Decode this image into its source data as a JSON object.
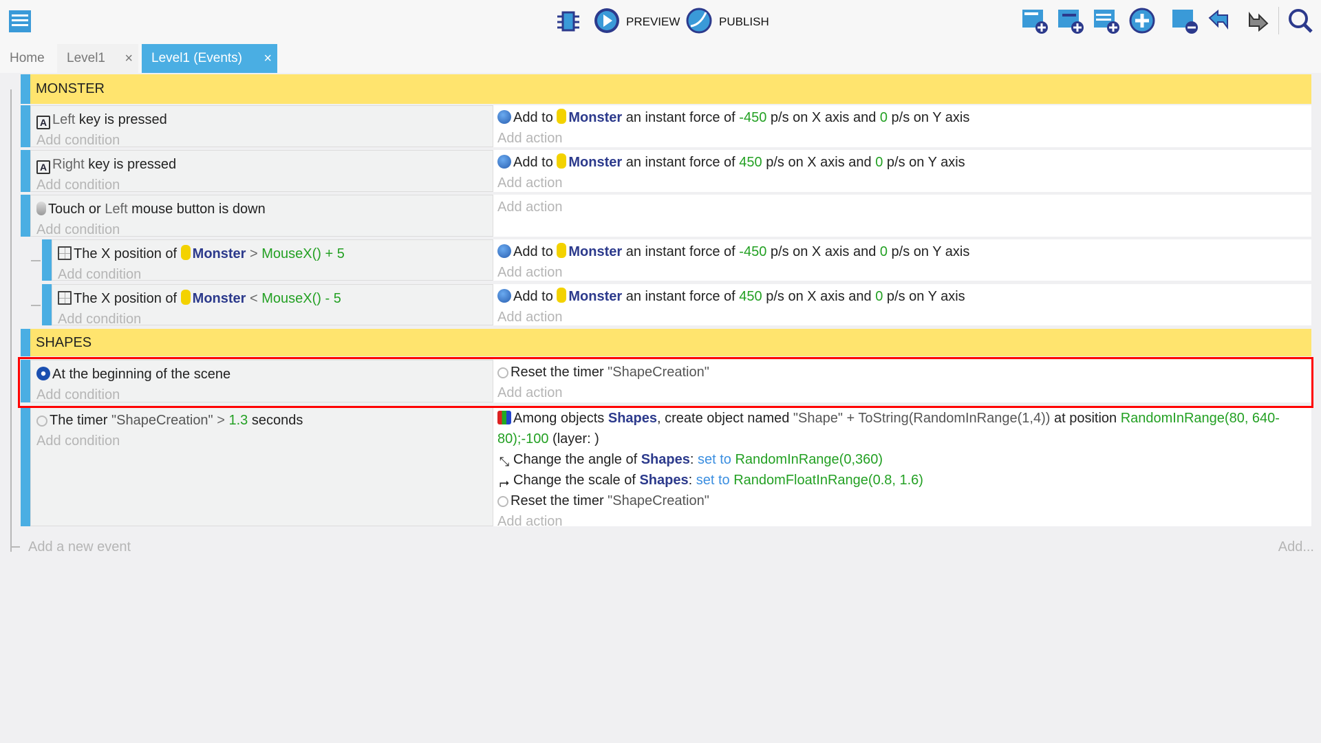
{
  "toolbar": {
    "preview_label": "PREVIEW",
    "publish_label": "PUBLISH"
  },
  "tabs": [
    {
      "label": "Home"
    },
    {
      "label": "Level1"
    },
    {
      "label": "Level1 (Events)",
      "active": true
    }
  ],
  "tab_close": "×",
  "colors": {
    "accent": "#4aaee3",
    "group": "#ffe46e",
    "object": "#2c3a8c",
    "number": "#23a023",
    "selection": "#ff0000"
  },
  "add_condition": "Add condition",
  "add_action": "Add action",
  "groups": [
    {
      "label": "MONSTER"
    },
    {
      "label": "SHAPES"
    }
  ],
  "events": [
    {
      "conditions": [
        [
          {
            "i": "key",
            "t": "A"
          },
          {
            "t": "Left",
            "c": "op"
          },
          {
            "t": " key is pressed"
          }
        ]
      ],
      "actions": [
        [
          {
            "i": "force"
          },
          {
            "t": "Add to "
          },
          {
            "i": "mon"
          },
          {
            "t": "Monster",
            "c": "obj"
          },
          {
            "t": " an instant "
          },
          {
            "t": "force of "
          },
          {
            "t": "-450",
            "c": "num"
          },
          {
            "t": " p/s on X axis and "
          },
          {
            "t": "0",
            "c": "num"
          },
          {
            "t": " p/s on Y axis"
          }
        ]
      ]
    },
    {
      "conditions": [
        [
          {
            "i": "key",
            "t": "A"
          },
          {
            "t": "Right",
            "c": "op"
          },
          {
            "t": " key is pressed"
          }
        ]
      ],
      "actions": [
        [
          {
            "i": "force"
          },
          {
            "t": "Add to "
          },
          {
            "i": "mon"
          },
          {
            "t": "Monster",
            "c": "obj"
          },
          {
            "t": " an instant "
          },
          {
            "t": "force of "
          },
          {
            "t": "450",
            "c": "num"
          },
          {
            "t": " p/s on X axis and "
          },
          {
            "t": "0",
            "c": "num"
          },
          {
            "t": " p/s on Y axis"
          }
        ]
      ]
    },
    {
      "conditions": [
        [
          {
            "i": "mouse"
          },
          {
            "t": "Touch or "
          },
          {
            "t": "Left",
            "c": "op"
          },
          {
            "t": " mouse button is down"
          }
        ]
      ],
      "actions": []
    },
    {
      "sub": true,
      "conditions": [
        [
          {
            "i": "pos"
          },
          {
            "t": "The X position of "
          },
          {
            "i": "mon"
          },
          {
            "t": "Monster",
            "c": "obj"
          },
          {
            "t": " > ",
            "c": "op"
          },
          {
            "t": "MouseX() + 5",
            "c": "num"
          }
        ]
      ],
      "actions": [
        [
          {
            "i": "force"
          },
          {
            "t": "Add to "
          },
          {
            "i": "mon"
          },
          {
            "t": "Monster",
            "c": "obj"
          },
          {
            "t": " an instant "
          },
          {
            "t": "force of "
          },
          {
            "t": "-450",
            "c": "num"
          },
          {
            "t": " p/s on X axis and "
          },
          {
            "t": "0",
            "c": "num"
          },
          {
            "t": " p/s on Y axis"
          }
        ]
      ]
    },
    {
      "sub": true,
      "conditions": [
        [
          {
            "i": "pos"
          },
          {
            "t": "The X position of "
          },
          {
            "i": "mon"
          },
          {
            "t": "Monster",
            "c": "obj"
          },
          {
            "t": " < ",
            "c": "op"
          },
          {
            "t": "MouseX() - 5",
            "c": "num"
          }
        ]
      ],
      "actions": [
        [
          {
            "i": "force"
          },
          {
            "t": "Add to "
          },
          {
            "i": "mon"
          },
          {
            "t": "Monster",
            "c": "obj"
          },
          {
            "t": " an instant "
          },
          {
            "t": "force of "
          },
          {
            "t": "450",
            "c": "num"
          },
          {
            "t": " p/s on X axis and "
          },
          {
            "t": "0",
            "c": "num"
          },
          {
            "t": " p/s on Y axis"
          }
        ]
      ]
    },
    {
      "selected": true,
      "conditions": [
        [
          {
            "i": "start"
          },
          {
            "t": "At the beginning of the scene"
          }
        ]
      ],
      "actions": [
        [
          {
            "i": "timer"
          },
          {
            "t": "Reset the timer "
          },
          {
            "t": "\"ShapeCreation\"",
            "c": "str"
          }
        ]
      ]
    },
    {
      "conditions": [
        [
          {
            "i": "timer"
          },
          {
            "t": "The timer "
          },
          {
            "t": "\"ShapeCreation\"",
            "c": "str"
          },
          {
            "t": " > ",
            "c": "op"
          },
          {
            "t": "1.3",
            "c": "num"
          },
          {
            "t": " seconds"
          }
        ]
      ],
      "actions": [
        [
          {
            "i": "create"
          },
          {
            "t": "Among objects "
          },
          {
            "t": "Shapes",
            "c": "obj"
          },
          {
            "t": ", create object named "
          },
          {
            "t": "\"Shape\" + ToString(RandomInRange(1,4))",
            "c": "str"
          },
          {
            "t": " at position "
          },
          {
            "t": "RandomInRange(80, 640-80);-100",
            "c": "num"
          },
          {
            "t": " (layer: )"
          }
        ],
        [
          {
            "i": "angle",
            "t": "⤡"
          },
          {
            "t": "Change the angle of "
          },
          {
            "t": "Shapes",
            "c": "obj"
          },
          {
            "t": ": "
          },
          {
            "t": "set to",
            "c": "setto"
          },
          {
            "t": " "
          },
          {
            "t": "RandomInRange(0,360)",
            "c": "num"
          }
        ],
        [
          {
            "i": "scale",
            "t": "⮣"
          },
          {
            "t": "Change the scale of "
          },
          {
            "t": "Shapes",
            "c": "obj"
          },
          {
            "t": ": "
          },
          {
            "t": "set to",
            "c": "setto"
          },
          {
            "t": " "
          },
          {
            "t": "RandomFloatInRange(0.8, 1.6)",
            "c": "num"
          }
        ],
        [
          {
            "i": "timer"
          },
          {
            "t": "Reset the timer "
          },
          {
            "t": "\"ShapeCreation\"",
            "c": "str"
          }
        ]
      ]
    }
  ],
  "footer": {
    "add_event": "Add a new event",
    "add_more": "Add..."
  }
}
